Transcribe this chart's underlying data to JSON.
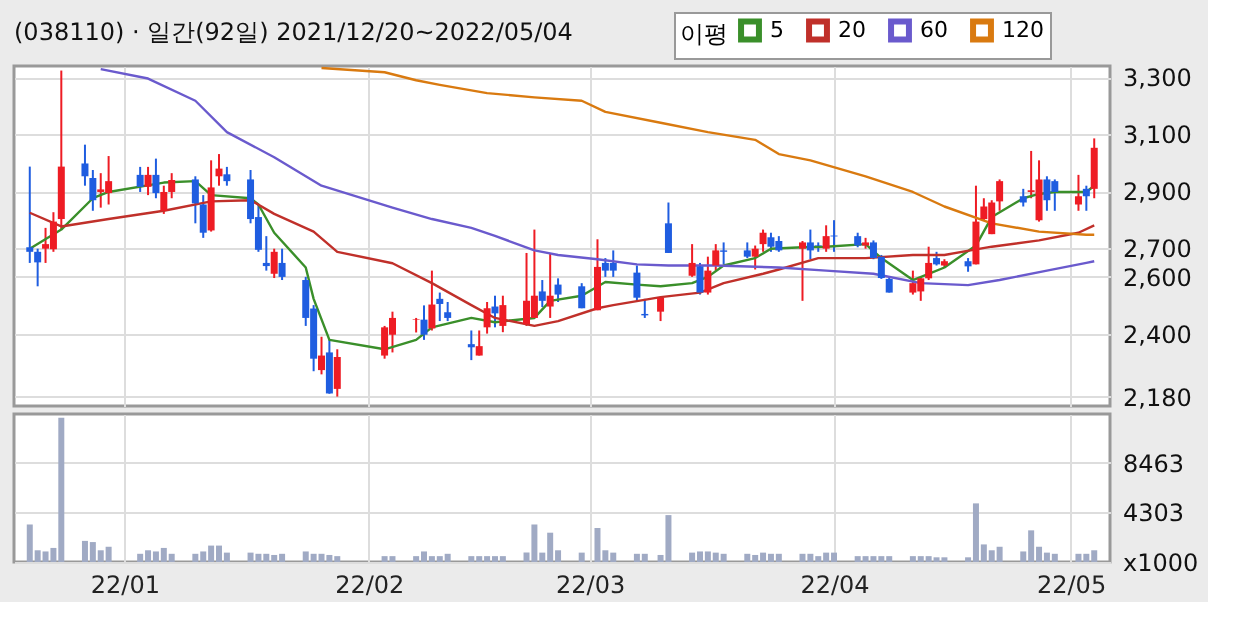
{
  "chart_data": [
    {
      "type": "candlestick",
      "title": "(038110) · 일간(92일) 2021/12/20~2022/05/04",
      "legend_title": "이평",
      "legend": "top right",
      "grid": true,
      "tick_labels": "y",
      "x": [
        "2021-12-20",
        "2021-12-21",
        "2021-12-22",
        "2021-12-23",
        "2021-12-24",
        "2021-12-27",
        "2021-12-28",
        "2021-12-29",
        "2021-12-30",
        "2022-01-03",
        "2022-01-04",
        "2022-01-05",
        "2022-01-06",
        "2022-01-07",
        "2022-01-10",
        "2022-01-11",
        "2022-01-12",
        "2022-01-13",
        "2022-01-14",
        "2022-01-17",
        "2022-01-18",
        "2022-01-19",
        "2022-01-20",
        "2022-01-21",
        "2022-01-24",
        "2022-01-25",
        "2022-01-26",
        "2022-01-27",
        "2022-01-28",
        "2022-02-03",
        "2022-02-04",
        "2022-02-07",
        "2022-02-08",
        "2022-02-09",
        "2022-02-10",
        "2022-02-11",
        "2022-02-14",
        "2022-02-15",
        "2022-02-16",
        "2022-02-17",
        "2022-02-18",
        "2022-02-21",
        "2022-02-22",
        "2022-02-23",
        "2022-02-24",
        "2022-02-25",
        "2022-02-28",
        "2022-03-02",
        "2022-03-03",
        "2022-03-04",
        "2022-03-07",
        "2022-03-08",
        "2022-03-10",
        "2022-03-11",
        "2022-03-14",
        "2022-03-15",
        "2022-03-16",
        "2022-03-17",
        "2022-03-18",
        "2022-03-21",
        "2022-03-22",
        "2022-03-23",
        "2022-03-24",
        "2022-03-25",
        "2022-03-28",
        "2022-03-29",
        "2022-03-30",
        "2022-03-31",
        "2022-04-01",
        "2022-04-04",
        "2022-04-05",
        "2022-04-06",
        "2022-04-07",
        "2022-04-08",
        "2022-04-11",
        "2022-04-12",
        "2022-04-13",
        "2022-04-14",
        "2022-04-15",
        "2022-04-18",
        "2022-04-19",
        "2022-04-20",
        "2022-04-21",
        "2022-04-22",
        "2022-04-25",
        "2022-04-26",
        "2022-04-27",
        "2022-04-28",
        "2022-04-29",
        "2022-05-02",
        "2022-05-03",
        "2022-05-04"
      ],
      "ohlc": [
        [
          2704,
          2987,
          2649,
          2688
        ],
        [
          2688,
          2699,
          2567,
          2651
        ],
        [
          2699,
          2772,
          2649,
          2715
        ],
        [
          2697,
          2827,
          2688,
          2794
        ],
        [
          2803,
          3324,
          2766,
          2987
        ],
        [
          2998,
          3064,
          2920,
          2953
        ],
        [
          2947,
          2975,
          2832,
          2869
        ],
        [
          2898,
          2964,
          2843,
          2907
        ],
        [
          2894,
          3024,
          2854,
          2936
        ],
        [
          2958,
          2986,
          2898,
          2916
        ],
        [
          2916,
          2986,
          2887,
          2958
        ],
        [
          2958,
          3015,
          2876,
          2894
        ],
        [
          2832,
          2920,
          2821,
          2898
        ],
        [
          2898,
          2964,
          2876,
          2940
        ],
        [
          2942,
          2953,
          2788,
          2858
        ],
        [
          2854,
          2887,
          2737,
          2755
        ],
        [
          2763,
          3009,
          2759,
          2914
        ],
        [
          2953,
          3031,
          2920,
          2980
        ],
        [
          2960,
          2986,
          2920,
          2936
        ],
        [
          2942,
          2975,
          2788,
          2803
        ],
        [
          2810,
          2854,
          2688,
          2695
        ],
        [
          2649,
          2743,
          2622,
          2638
        ],
        [
          2611,
          2699,
          2596,
          2688
        ],
        [
          2649,
          2699,
          2589,
          2600
        ],
        [
          2589,
          2600,
          2428,
          2456
        ],
        [
          2489,
          2501,
          2269,
          2313
        ],
        [
          2273,
          2390,
          2258,
          2324
        ],
        [
          2335,
          2379,
          2190,
          2191
        ],
        [
          2207,
          2346,
          2180,
          2319
        ],
        [
          2324,
          2428,
          2313,
          2423
        ],
        [
          2397,
          2478,
          2335,
          2456
        ],
        [
          2450,
          2456,
          2405,
          2452
        ],
        [
          2450,
          2500,
          2379,
          2397
        ],
        [
          2419,
          2622,
          2412,
          2503
        ],
        [
          2523,
          2545,
          2445,
          2505
        ],
        [
          2476,
          2512,
          2445,
          2456
        ],
        [
          2364,
          2412,
          2308,
          2353
        ],
        [
          2324,
          2412,
          2324,
          2357
        ],
        [
          2423,
          2512,
          2401,
          2490
        ],
        [
          2496,
          2534,
          2423,
          2472
        ],
        [
          2428,
          2534,
          2406,
          2501
        ],
        [
          2434,
          2684,
          2428,
          2516
        ],
        [
          2456,
          2766,
          2456,
          2534
        ],
        [
          2549,
          2589,
          2494,
          2516
        ],
        [
          2496,
          2682,
          2456,
          2534
        ],
        [
          2573,
          2595,
          2512,
          2538
        ],
        [
          2567,
          2578,
          2490,
          2490
        ],
        [
          2483,
          2732,
          2483,
          2635
        ],
        [
          2649,
          2666,
          2600,
          2622
        ],
        [
          2649,
          2693,
          2600,
          2622
        ],
        [
          2615,
          2640,
          2516,
          2527
        ],
        [
          2470,
          2523,
          2456,
          2465
        ],
        [
          2478,
          2527,
          2445,
          2527
        ],
        [
          2788,
          2861,
          2684,
          2684
        ],
        [
          2604,
          2715,
          2600,
          2649
        ],
        [
          2637,
          2649,
          2538,
          2545
        ],
        [
          2545,
          2671,
          2538,
          2622
        ],
        [
          2640,
          2715,
          2622,
          2693
        ],
        [
          2693,
          2721,
          2644,
          2688
        ],
        [
          2693,
          2721,
          2666,
          2671
        ],
        [
          2671,
          2710,
          2626,
          2699
        ],
        [
          2715,
          2766,
          2688,
          2755
        ],
        [
          2739,
          2755,
          2688,
          2706
        ],
        [
          2726,
          2743,
          2688,
          2693
        ],
        [
          2699,
          2726,
          2516,
          2721
        ],
        [
          2721,
          2766,
          2662,
          2693
        ],
        [
          2712,
          2721,
          2688,
          2710
        ],
        [
          2699,
          2781,
          2688,
          2743
        ],
        [
          2745,
          2799,
          2688,
          2742
        ],
        [
          2743,
          2755,
          2704,
          2710
        ],
        [
          2710,
          2737,
          2699,
          2721
        ],
        [
          2721,
          2728,
          2662,
          2666
        ],
        [
          2671,
          2677,
          2593,
          2596
        ],
        [
          2593,
          2600,
          2545,
          2545
        ],
        [
          2545,
          2622,
          2538,
          2578
        ],
        [
          2549,
          2600,
          2516,
          2595
        ],
        [
          2595,
          2706,
          2589,
          2649
        ],
        [
          2666,
          2688,
          2640,
          2644
        ],
        [
          2640,
          2662,
          2633,
          2655
        ],
        [
          2655,
          2666,
          2618,
          2637
        ],
        [
          2644,
          2920,
          2644,
          2794
        ],
        [
          2803,
          2876,
          2799,
          2847
        ],
        [
          2750,
          2869,
          2750,
          2861
        ],
        [
          2865,
          2942,
          2832,
          2936
        ],
        [
          2883,
          2909,
          2847,
          2861
        ],
        [
          2898,
          3042,
          2876,
          2904
        ],
        [
          2799,
          3009,
          2794,
          2942
        ],
        [
          2942,
          2953,
          2832,
          2869
        ],
        [
          2936,
          2942,
          2832,
          2898
        ],
        [
          2854,
          2958,
          2832,
          2883
        ],
        [
          2909,
          2920,
          2832,
          2883
        ],
        [
          2909,
          3086,
          2876,
          3053
        ]
      ],
      "series": [
        {
          "name": "5",
          "type": "line",
          "color": "#3a8f2a",
          "x": [
            "2021-12-20",
            "2021-12-24",
            "2021-12-28",
            "2021-12-30",
            "2022-01-06",
            "2022-01-10",
            "2022-01-12",
            "2022-01-17",
            "2022-01-18",
            "2022-01-20",
            "2022-01-24",
            "2022-01-25",
            "2022-01-27",
            "2022-02-03",
            "2022-02-07",
            "2022-02-09",
            "2022-02-14",
            "2022-02-17",
            "2022-02-22",
            "2022-02-24",
            "2022-02-28",
            "2022-03-03",
            "2022-03-07",
            "2022-03-10",
            "2022-03-14",
            "2022-03-16",
            "2022-03-18",
            "2022-03-22",
            "2022-03-24",
            "2022-03-28",
            "2022-03-31",
            "2022-04-05",
            "2022-04-07",
            "2022-04-11",
            "2022-04-13",
            "2022-04-15",
            "2022-04-19",
            "2022-04-21",
            "2022-04-25",
            "2022-04-27",
            "2022-04-29",
            "2022-05-03",
            "2022-05-04"
          ],
          "values": [
            2699,
            2766,
            2876,
            2898,
            2931,
            2936,
            2887,
            2876,
            2854,
            2755,
            2633,
            2523,
            2379,
            2346,
            2379,
            2423,
            2456,
            2441,
            2456,
            2516,
            2534,
            2582,
            2573,
            2567,
            2578,
            2600,
            2640,
            2666,
            2699,
            2704,
            2706,
            2715,
            2666,
            2589,
            2611,
            2633,
            2710,
            2810,
            2876,
            2891,
            2898,
            2898,
            2920
          ]
        },
        {
          "name": "20",
          "type": "line",
          "color": "#c0302a",
          "x": [
            "2021-12-20",
            "2021-12-24",
            "2021-12-30",
            "2022-01-06",
            "2022-01-12",
            "2022-01-17",
            "2022-01-20",
            "2022-01-25",
            "2022-01-28",
            "2022-02-04",
            "2022-02-09",
            "2022-02-14",
            "2022-02-17",
            "2022-02-22",
            "2022-02-25",
            "2022-03-02",
            "2022-03-04",
            "2022-03-10",
            "2022-03-15",
            "2022-03-18",
            "2022-03-23",
            "2022-03-25",
            "2022-03-30",
            "2022-04-05",
            "2022-04-11",
            "2022-04-15",
            "2022-04-21",
            "2022-04-27",
            "2022-05-02",
            "2022-05-04"
          ],
          "values": [
            2825,
            2777,
            2803,
            2832,
            2865,
            2869,
            2821,
            2759,
            2688,
            2648,
            2578,
            2501,
            2456,
            2428,
            2445,
            2490,
            2501,
            2529,
            2545,
            2578,
            2611,
            2626,
            2666,
            2666,
            2677,
            2677,
            2706,
            2728,
            2755,
            2781
          ]
        },
        {
          "name": "60",
          "type": "line",
          "color": "#6a5acd",
          "x": [
            "2021-12-29",
            "2022-01-04",
            "2022-01-10",
            "2022-01-14",
            "2022-01-20",
            "2022-01-26",
            "2022-02-04",
            "2022-02-09",
            "2022-02-14",
            "2022-02-17",
            "2022-02-22",
            "2022-02-25",
            "2022-03-02",
            "2022-03-07",
            "2022-03-11",
            "2022-03-17",
            "2022-03-25",
            "2022-03-31",
            "2022-04-06",
            "2022-04-12",
            "2022-04-18",
            "2022-04-22",
            "2022-04-28",
            "2022-05-03",
            "2022-05-04"
          ],
          "values": [
            3329,
            3296,
            3218,
            3108,
            3020,
            2920,
            2843,
            2803,
            2772,
            2744,
            2693,
            2677,
            2662,
            2644,
            2640,
            2640,
            2633,
            2622,
            2611,
            2578,
            2571,
            2589,
            2622,
            2649,
            2655
          ]
        },
        {
          "name": "120",
          "type": "line",
          "color": "#d97a10",
          "x": [
            "2022-01-26",
            "2022-02-03",
            "2022-02-07",
            "2022-02-10",
            "2022-02-16",
            "2022-02-22",
            "2022-02-28",
            "2022-03-03",
            "2022-03-10",
            "2022-03-16",
            "2022-03-22",
            "2022-03-25",
            "2022-03-29",
            "2022-04-05",
            "2022-04-11",
            "2022-04-15",
            "2022-04-21",
            "2022-04-27",
            "2022-05-03",
            "2022-05-04"
          ],
          "values": [
            3333,
            3318,
            3290,
            3274,
            3245,
            3230,
            3218,
            3179,
            3141,
            3108,
            3081,
            3031,
            3009,
            2953,
            2898,
            2847,
            2788,
            2759,
            2748,
            2748
          ]
        }
      ],
      "xlim": [
        "2021-12-18",
        "2022-05-06"
      ],
      "xticks": [
        {
          "value": "2022-01",
          "label": null
        },
        {
          "value": "2022-02",
          "label": null
        },
        {
          "value": "2022-03",
          "label": null
        },
        {
          "value": "2022-04",
          "label": null
        },
        {
          "value": "2022-05",
          "label": null
        }
      ],
      "ylim": [
        2147,
        3340
      ],
      "yticks": [
        {
          "value": 3300,
          "label": "3,300"
        },
        {
          "value": 3100,
          "label": "3,100"
        },
        {
          "value": 2900,
          "label": "2,900"
        },
        {
          "value": 2700,
          "label": "2,700"
        },
        {
          "value": 2600,
          "label": "2,600"
        },
        {
          "value": 2400,
          "label": "2,400"
        },
        {
          "value": 2180,
          "label": "2,180"
        }
      ]
    },
    {
      "type": "bar",
      "grid": true,
      "color": "#a0aac4",
      "x": [
        "2021-12-20",
        "2021-12-21",
        "2021-12-22",
        "2021-12-23",
        "2021-12-24",
        "2021-12-27",
        "2021-12-28",
        "2021-12-29",
        "2021-12-30",
        "2022-01-03",
        "2022-01-04",
        "2022-01-05",
        "2022-01-06",
        "2022-01-07",
        "2022-01-10",
        "2022-01-11",
        "2022-01-12",
        "2022-01-13",
        "2022-01-14",
        "2022-01-17",
        "2022-01-18",
        "2022-01-19",
        "2022-01-20",
        "2022-01-21",
        "2022-01-24",
        "2022-01-25",
        "2022-01-26",
        "2022-01-27",
        "2022-01-28",
        "2022-02-03",
        "2022-02-04",
        "2022-02-07",
        "2022-02-08",
        "2022-02-09",
        "2022-02-10",
        "2022-02-11",
        "2022-02-14",
        "2022-02-15",
        "2022-02-16",
        "2022-02-17",
        "2022-02-18",
        "2022-02-21",
        "2022-02-22",
        "2022-02-23",
        "2022-02-24",
        "2022-02-25",
        "2022-02-28",
        "2022-03-02",
        "2022-03-03",
        "2022-03-04",
        "2022-03-07",
        "2022-03-08",
        "2022-03-10",
        "2022-03-11",
        "2022-03-14",
        "2022-03-15",
        "2022-03-16",
        "2022-03-17",
        "2022-03-18",
        "2022-03-21",
        "2022-03-22",
        "2022-03-23",
        "2022-03-24",
        "2022-03-25",
        "2022-03-28",
        "2022-03-29",
        "2022-03-30",
        "2022-03-31",
        "2022-04-01",
        "2022-04-04",
        "2022-04-05",
        "2022-04-06",
        "2022-04-07",
        "2022-04-08",
        "2022-04-11",
        "2022-04-12",
        "2022-04-13",
        "2022-04-14",
        "2022-04-15",
        "2022-04-18",
        "2022-04-19",
        "2022-04-20",
        "2022-04-21",
        "2022-04-22",
        "2022-04-25",
        "2022-04-26",
        "2022-04-27",
        "2022-04-28",
        "2022-04-29",
        "2022-05-02",
        "2022-05-03",
        "2022-05-04"
      ],
      "values": [
        3200,
        1000,
        900,
        1200,
        12300,
        1800,
        1700,
        1000,
        1300,
        700,
        1000,
        900,
        1200,
        700,
        700,
        900,
        1400,
        1400,
        800,
        800,
        700,
        700,
        600,
        700,
        900,
        700,
        700,
        600,
        500,
        500,
        500,
        500,
        900,
        500,
        500,
        700,
        500,
        500,
        500,
        500,
        500,
        800,
        3200,
        800,
        2500,
        1000,
        800,
        2900,
        1000,
        800,
        700,
        700,
        600,
        4000,
        800,
        900,
        900,
        800,
        700,
        700,
        600,
        800,
        700,
        700,
        700,
        700,
        500,
        800,
        800,
        500,
        500,
        500,
        500,
        500,
        500,
        500,
        500,
        400,
        400,
        400,
        5000,
        1500,
        1000,
        1300,
        900,
        2700,
        1300,
        800,
        700,
        700,
        700,
        1000
      ],
      "xlim": [
        "2021-12-18",
        "2022-05-06"
      ],
      "xticks": [
        {
          "value": "2022-01",
          "label": "22/01"
        },
        {
          "value": "2022-02",
          "label": "22/02"
        },
        {
          "value": "2022-03",
          "label": "22/03"
        },
        {
          "value": "2022-04",
          "label": "22/04"
        },
        {
          "value": "2022-05",
          "label": "22/05"
        }
      ],
      "ylim": [
        0,
        12623
      ],
      "yticks": [
        {
          "value": 0,
          "label": "x1000"
        },
        4303,
        8463
      ]
    }
  ]
}
